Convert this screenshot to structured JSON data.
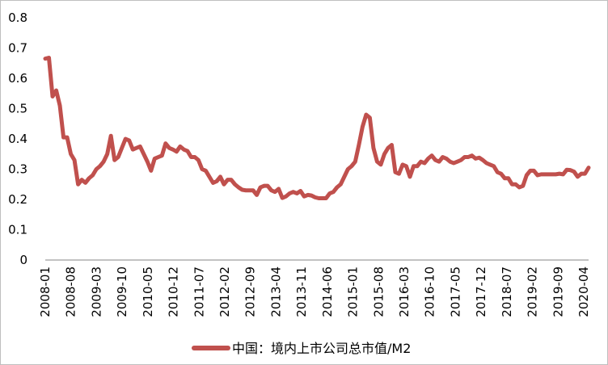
{
  "chart_data": {
    "type": "line",
    "title": "",
    "xlabel": "",
    "ylabel": "",
    "ylim": [
      0,
      0.8
    ],
    "y_ticks": [
      "0",
      "0.1",
      "0.2",
      "0.3",
      "0.4",
      "0.5",
      "0.6",
      "0.7",
      "0.8"
    ],
    "x_ticks": [
      "2008-01",
      "2008-08",
      "2009-03",
      "2009-10",
      "2010-05",
      "2010-12",
      "2011-07",
      "2012-02",
      "2012-09",
      "2013-04",
      "2013-11",
      "2014-06",
      "2015-01",
      "2015-08",
      "2016-03",
      "2016-10",
      "2017-05",
      "2017-12",
      "2018-07",
      "2019-02",
      "2019-09",
      "2020-04"
    ],
    "grid": false,
    "legend_position": "bottom",
    "color": "#C0504D",
    "series": [
      {
        "name": "中国：境内上市公司总市值/M2",
        "values": [
          0.665,
          0.668,
          0.54,
          0.56,
          0.51,
          0.405,
          0.405,
          0.35,
          0.33,
          0.25,
          0.265,
          0.255,
          0.27,
          0.28,
          0.3,
          0.31,
          0.325,
          0.35,
          0.41,
          0.33,
          0.34,
          0.37,
          0.4,
          0.395,
          0.365,
          0.37,
          0.375,
          0.35,
          0.325,
          0.295,
          0.335,
          0.34,
          0.345,
          0.385,
          0.37,
          0.365,
          0.358,
          0.375,
          0.365,
          0.36,
          0.34,
          0.34,
          0.33,
          0.3,
          0.295,
          0.275,
          0.255,
          0.26,
          0.275,
          0.25,
          0.265,
          0.265,
          0.25,
          0.24,
          0.232,
          0.23,
          0.23,
          0.23,
          0.215,
          0.24,
          0.245,
          0.245,
          0.23,
          0.225,
          0.235,
          0.205,
          0.21,
          0.22,
          0.225,
          0.22,
          0.228,
          0.21,
          0.215,
          0.213,
          0.207,
          0.204,
          0.204,
          0.204,
          0.22,
          0.225,
          0.24,
          0.25,
          0.275,
          0.3,
          0.31,
          0.325,
          0.38,
          0.44,
          0.48,
          0.47,
          0.37,
          0.325,
          0.315,
          0.35,
          0.37,
          0.38,
          0.29,
          0.285,
          0.315,
          0.31,
          0.275,
          0.31,
          0.31,
          0.325,
          0.32,
          0.335,
          0.345,
          0.33,
          0.325,
          0.34,
          0.335,
          0.325,
          0.32,
          0.325,
          0.33,
          0.34,
          0.34,
          0.345,
          0.335,
          0.338,
          0.33,
          0.32,
          0.315,
          0.31,
          0.29,
          0.285,
          0.27,
          0.27,
          0.25,
          0.25,
          0.24,
          0.245,
          0.28,
          0.295,
          0.295,
          0.28,
          0.283,
          0.283,
          0.283,
          0.283,
          0.283,
          0.285,
          0.283,
          0.298,
          0.297,
          0.292,
          0.275,
          0.285,
          0.285,
          0.305
        ]
      }
    ]
  }
}
